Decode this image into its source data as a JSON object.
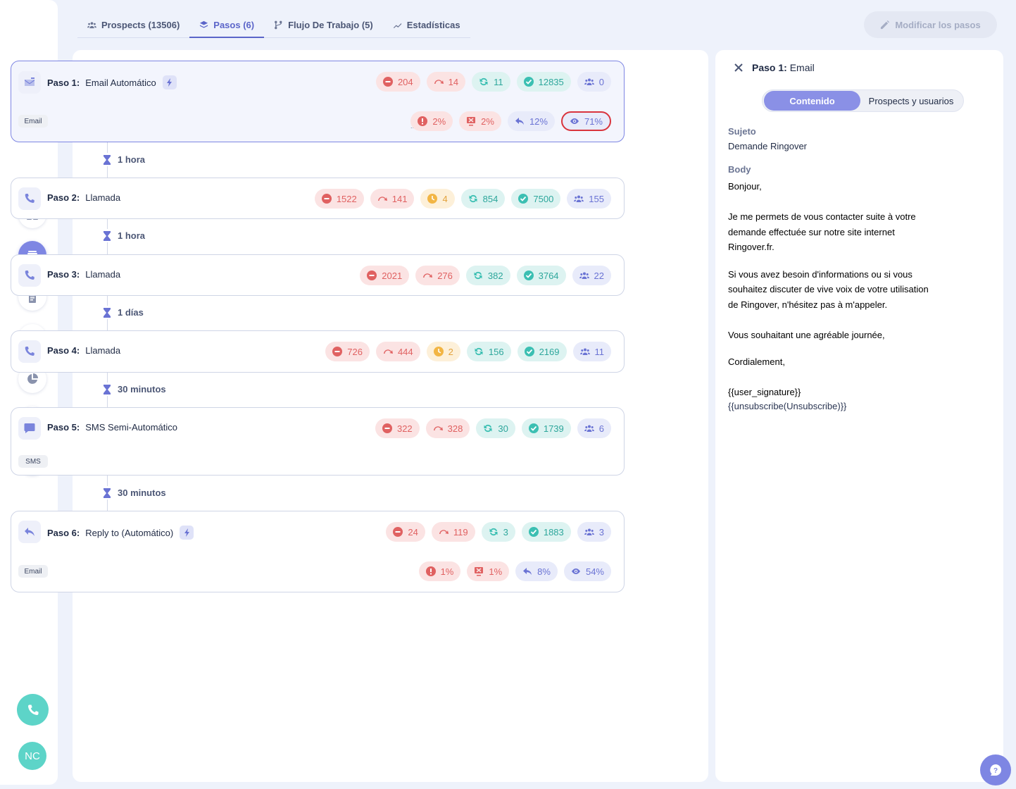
{
  "tabs": [
    {
      "label": "Prospects (13506)",
      "icon": "people-icon"
    },
    {
      "label": "Pasos (6)",
      "icon": "layers-icon"
    },
    {
      "label": "Flujo De Trabajo (5)",
      "icon": "workflow-icon"
    },
    {
      "label": "Estadísticas",
      "icon": "chart-line-icon"
    }
  ],
  "modify_button": "Modificar los pasos",
  "steps": [
    {
      "num": "Paso 1:",
      "name": "Email Automático",
      "type_tag": "Email",
      "truncated": "...",
      "stats": [
        "204",
        "14",
        "11",
        "12835",
        "0"
      ],
      "stats2": [
        "2%",
        "2%",
        "12%",
        "71%"
      ]
    },
    {
      "num": "Paso 2:",
      "name": "Llamada",
      "stats": [
        "1522",
        "141",
        "4",
        "854",
        "7500",
        "155"
      ]
    },
    {
      "num": "Paso 3:",
      "name": "Llamada",
      "stats": [
        "2021",
        "276",
        "382",
        "3764",
        "22"
      ]
    },
    {
      "num": "Paso 4:",
      "name": "Llamada",
      "stats": [
        "726",
        "444",
        "2",
        "156",
        "2169",
        "11"
      ]
    },
    {
      "num": "Paso 5:",
      "name": "SMS Semi-Automático",
      "type_tag": "SMS",
      "stats": [
        "322",
        "328",
        "30",
        "1739",
        "6"
      ]
    },
    {
      "num": "Paso 6:",
      "name": "Reply to (Automático)",
      "type_tag": "Email",
      "stats": [
        "24",
        "119",
        "3",
        "1883",
        "3"
      ],
      "stats2": [
        "1%",
        "1%",
        "8%",
        "54%"
      ]
    }
  ],
  "delays": [
    "1 hora",
    "1 hora",
    "1 días",
    "30 minutos",
    "30 minutos"
  ],
  "detail": {
    "title_num": "Paso 1:",
    "title_type": "Email",
    "segment_active": "Contenido",
    "segment_inactive": "Prospects y usuarios",
    "subject_label": "Sujeto",
    "subject_value": "Demande Ringover",
    "body_label": "Body",
    "body_lines": {
      "l1": "Bonjour,",
      "l2": "Je me permets de vous contacter suite à votre",
      "l3": "demande effectuée sur notre site internet",
      "l4": "Ringover.fr.",
      "l5": "Si vous avez besoin d'informations ou si vous",
      "l6": "souhaitez discuter de vive voix de votre utilisation",
      "l7": "de Ringover, n'hésitez pas à m'appeler.",
      "l8": "Vous souhaitant une agréable journée,",
      "l9": "Cordialement,",
      "l10": "{{user_signature}}",
      "l11": "{{unsubscribe(Unsubscribe)}}"
    }
  },
  "user": {
    "initials": "NC"
  },
  "colors": {
    "accent": "#7e86e3",
    "teal": "#5dd4c8",
    "red": "#e06161",
    "orange": "#f2b544",
    "highlight_border": "#d9343d"
  }
}
